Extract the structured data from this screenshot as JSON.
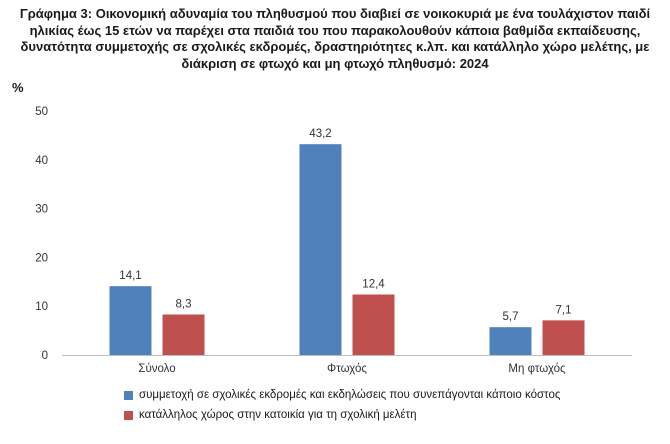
{
  "chart_data": {
    "type": "bar",
    "title": "Γράφημα 3: Οικονομική αδυναμία του πληθυσμού που διαβιεί σε νοικοκυριά με ένα τουλάχιστον παιδί ηλικίας έως 15 ετών να παρέχει στα παιδιά του που παρακολουθούν κάποια βαθμίδα εκπαίδευσης, δυνατότητα συμμετοχής σε σχολικές εκδρομές, δραστηριότητες κ.λπ. και κατάλληλο χώρο μελέτης, με διάκριση σε φτωχό και μη φτωχό πληθυσμό: 2024",
    "ylabel": "%",
    "ylim": [
      0,
      50
    ],
    "yticks": [
      "0",
      "10",
      "20",
      "30",
      "40",
      "50"
    ],
    "grid": false,
    "legend_position": "bottom",
    "categories": [
      "Σύνολο",
      "Φτωχός",
      "Μη φτωχός"
    ],
    "series": [
      {
        "name": "συμμετοχή σε σχολικές εκδρομές και εκδηλώσεις που συνεπάγονται κάποιο κόστος",
        "values": [
          14.1,
          43.2,
          5.7
        ],
        "labels": [
          "14,1",
          "43,2",
          "5,7"
        ],
        "color": "#4f81bd"
      },
      {
        "name": "κατάλληλος χώρος στην κατοικία για τη σχολική μελέτη",
        "values": [
          8.3,
          12.4,
          7.1
        ],
        "labels": [
          "8,3",
          "12,4",
          "7,1"
        ],
        "color": "#c0504d"
      }
    ]
  }
}
